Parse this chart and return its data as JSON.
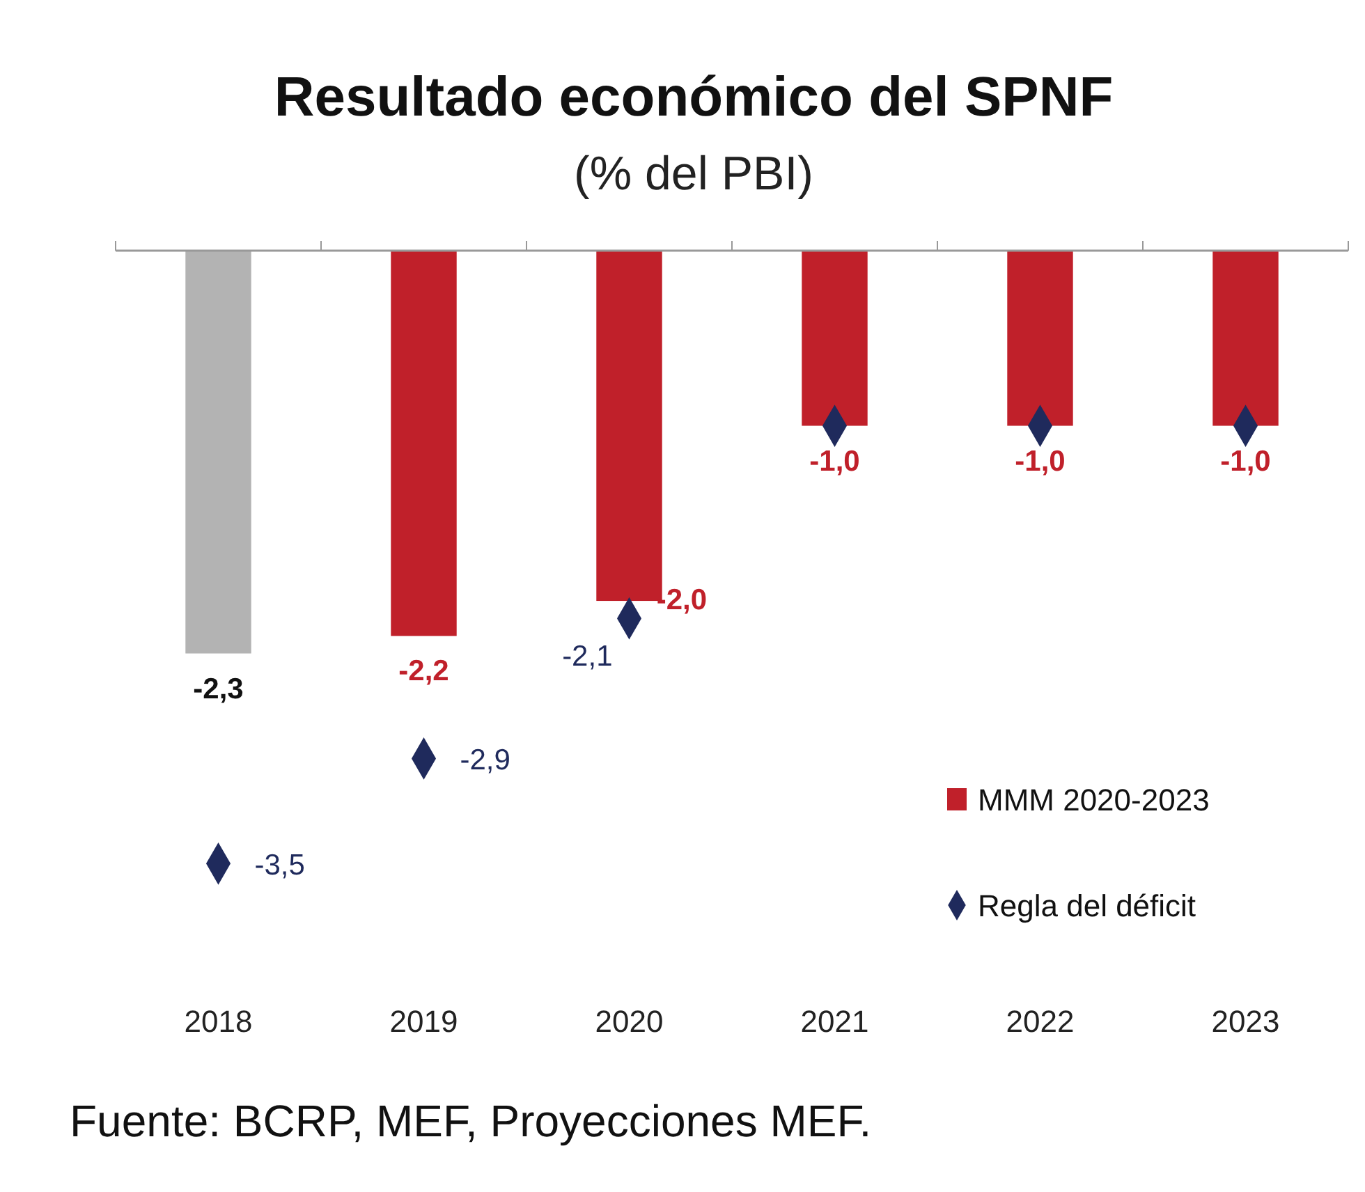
{
  "chart_data": {
    "type": "bar",
    "title": "Resultado económico del SPNF",
    "subtitle": "(% del PBI)",
    "categories": [
      "2018",
      "2019",
      "2020",
      "2021",
      "2022",
      "2023"
    ],
    "series": [
      {
        "name": "MMM 2020-2023",
        "color": "#c0202a",
        "colors": [
          "#b3b3b3",
          "#c0202a",
          "#c0202a",
          "#c0202a",
          "#c0202a",
          "#c0202a"
        ],
        "values": [
          -2.3,
          -2.2,
          -2.0,
          -1.0,
          -1.0,
          -1.0
        ],
        "value_labels": [
          "-2,3",
          "-2,2",
          "-2,0",
          "-1,0",
          "-1,0",
          "-1,0"
        ]
      },
      {
        "name": "Regla del déficit",
        "type": "scatter",
        "color": "#1f2a5c",
        "marker": "diamond",
        "values": [
          -3.5,
          -2.9,
          -2.1,
          -1.0,
          -1.0,
          -1.0
        ],
        "value_labels": [
          "-3,5",
          "-2,9",
          "-2,1",
          null,
          null,
          null
        ]
      }
    ],
    "legend": "bottom right",
    "annotations": [
      "Fuente: BCRP, MEF, Proyecciones MEF."
    ]
  }
}
